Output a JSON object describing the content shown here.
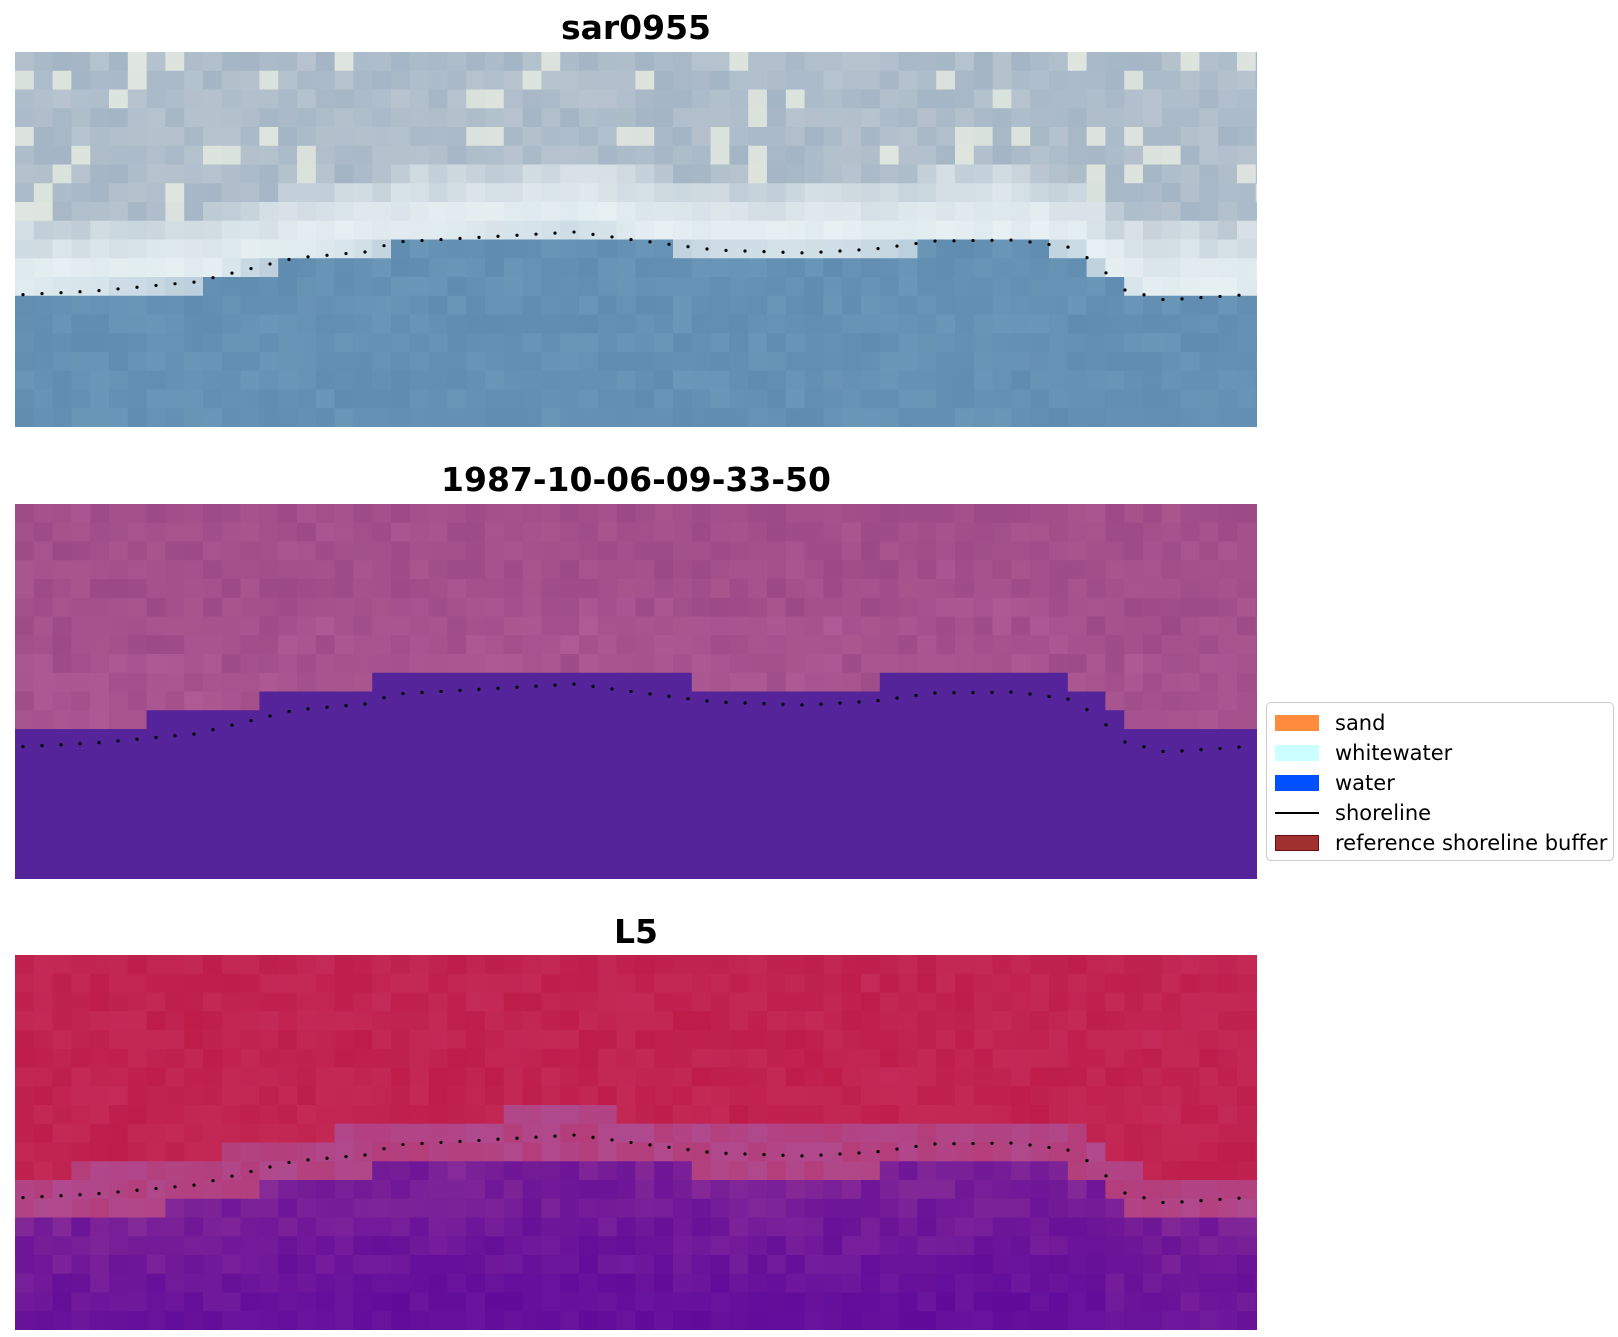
{
  "panels": [
    {
      "title": "sar0955",
      "style": "rgb"
    },
    {
      "title": "1987-10-06-09-33-50",
      "style": "classified"
    },
    {
      "title": "L5",
      "style": "index"
    }
  ],
  "legend": {
    "items": [
      {
        "label": "sand",
        "color": "#ff8c3c",
        "kind": "patch"
      },
      {
        "label": "whitewater",
        "color": "#ccffff",
        "kind": "patch"
      },
      {
        "label": "water",
        "color": "#0050ff",
        "kind": "patch"
      },
      {
        "label": "shoreline",
        "color": "#000000",
        "kind": "line"
      },
      {
        "label": "reference shoreline buffer",
        "color": "#a03030",
        "kind": "patch"
      }
    ]
  },
  "colors": {
    "rgb_land": "#b7c4cf",
    "rgb_surf": "#dfeaee",
    "rgb_water": "#6a96b8",
    "classified_land": "#9c4a86",
    "classified_water": "#55249a",
    "index_land": "#be1d4a",
    "index_mid": "#b04a8e",
    "index_water": "#6a159e",
    "shoreline": "#000000"
  }
}
